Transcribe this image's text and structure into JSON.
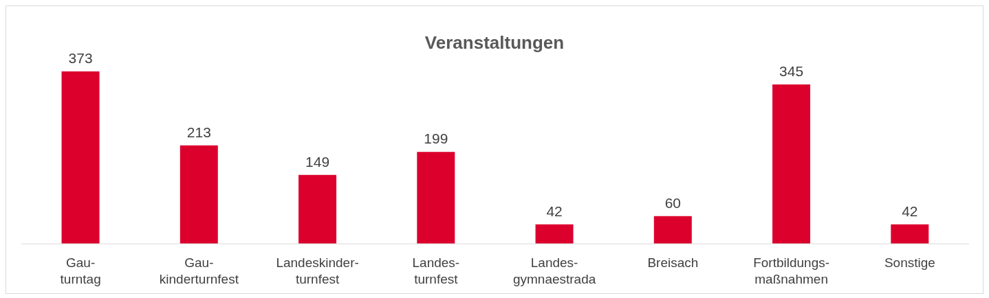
{
  "chart_data": {
    "type": "bar",
    "title": "Veranstaltungen",
    "categories": [
      "Gau-\nturntag",
      "Gau-\nkinderturnfest",
      "Landeskinder-\nturnfest",
      "Landes-\nturnfest",
      "Landes-\ngymnaestrada",
      "Breisach",
      "Fortbildungs-\nmaßnahmen",
      "Sonstige"
    ],
    "values": [
      373,
      213,
      149,
      199,
      42,
      60,
      345,
      42
    ],
    "color": "#dc002d",
    "data_labels": true,
    "grid": false,
    "legend": false
  }
}
